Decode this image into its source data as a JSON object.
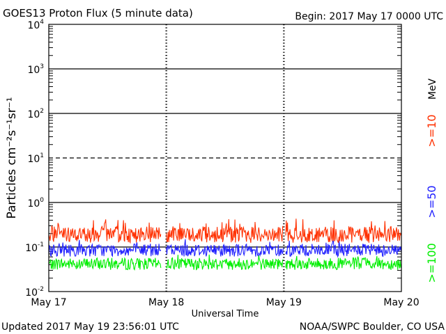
{
  "title": "GOES13 Proton Flux (5 minute data)",
  "begin": "Begin: 2017 May 17 0000 UTC",
  "updated": "Updated 2017 May 19 23:56:01 UTC",
  "credit": "NOAA/SWPC Boulder, CO USA",
  "colors": {
    "ge10": "#ff3000",
    "ge50": "#2020ff",
    "ge100": "#00ee00",
    "axis": "#000000"
  },
  "chart_data": {
    "type": "line",
    "title": "GOES13 Proton Flux (5 minute data)",
    "xlabel": "Universal Time",
    "ylabel": "Particles cm⁻²s⁻¹sr⁻¹",
    "unit_label": "MeV",
    "y_scale": "log",
    "ylim": [
      0.01,
      10000
    ],
    "xlim": [
      "2017-05-17 00:00",
      "2017-05-20 00:00"
    ],
    "x_ticks": [
      "May 17",
      "May 18",
      "May 19",
      "May 20"
    ],
    "y_ticks": [
      {
        "base": "10",
        "exp": "-2"
      },
      {
        "base": "10",
        "exp": "-1"
      },
      {
        "base": "10",
        "exp": "0"
      },
      {
        "base": "10",
        "exp": "1"
      },
      {
        "base": "10",
        "exp": "2"
      },
      {
        "base": "10",
        "exp": "3"
      },
      {
        "base": "10",
        "exp": "4"
      }
    ],
    "threshold_lines": [
      {
        "value": 0.1,
        "style": "solid"
      },
      {
        "value": 1,
        "style": "solid"
      },
      {
        "value": 10,
        "style": "dashed"
      },
      {
        "value": 100,
        "style": "solid"
      },
      {
        "value": 1000,
        "style": "solid"
      }
    ],
    "gaps": [
      [
        "2017-05-17 23:00",
        "2017-05-18 00:00"
      ],
      [
        "2017-05-19 00:00",
        "2017-05-19 00:20"
      ]
    ],
    "series": [
      {
        "name": ">=10",
        "typical": 0.19,
        "range": [
          0.11,
          0.45
        ]
      },
      {
        "name": ">=50",
        "typical": 0.085,
        "range": [
          0.05,
          0.15
        ]
      },
      {
        "name": ">=100",
        "typical": 0.042,
        "range": [
          0.025,
          0.07
        ]
      }
    ]
  }
}
